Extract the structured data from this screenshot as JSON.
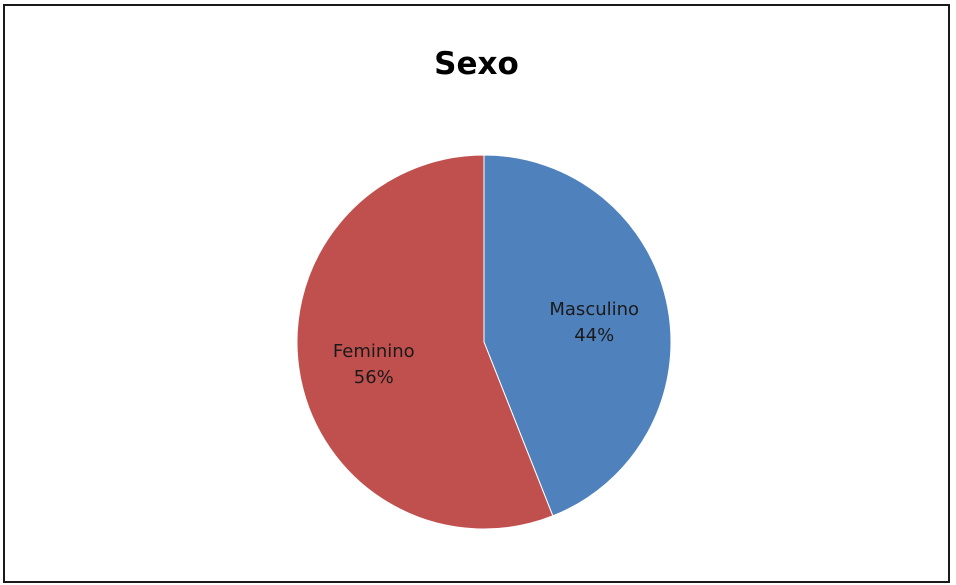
{
  "chart_data": {
    "type": "pie",
    "title": "Sexo",
    "slices": [
      {
        "label": "Masculino",
        "value": 44,
        "value_label": "44%",
        "color": "#4f81bd"
      },
      {
        "label": "Feminino",
        "value": 56,
        "value_label": "56%",
        "color": "#c0504d"
      }
    ],
    "start_angle": "top",
    "direction": "clockwise",
    "legend": "none",
    "data_labels": "inside"
  }
}
